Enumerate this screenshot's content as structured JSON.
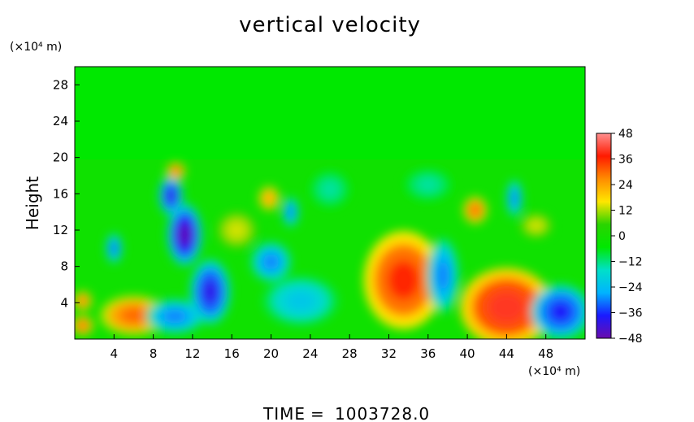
{
  "chart_data": {
    "type": "heatmap",
    "title": "vertical velocity",
    "xlabel": "",
    "ylabel": "Height",
    "x_unit": "(×10⁴ m)",
    "y_unit": "(×10⁴ m)",
    "xlim": [
      0,
      52
    ],
    "ylim": [
      0,
      30
    ],
    "x_ticks": [
      4,
      8,
      12,
      16,
      20,
      24,
      28,
      32,
      36,
      40,
      44,
      48
    ],
    "y_ticks": [
      4,
      8,
      12,
      16,
      20,
      24,
      28
    ],
    "colorbar": {
      "ticks": [
        48,
        36,
        24,
        12,
        0,
        -12,
        -24,
        -36,
        -48
      ],
      "range": [
        -48,
        48
      ],
      "colors": [
        "#6a0dad",
        "#1a1aff",
        "#00b4ff",
        "#00e0c8",
        "#00e800",
        "#2ad400",
        "#ffe600",
        "#ff8c00",
        "#ff1a00",
        "#ff9090"
      ]
    },
    "features": [
      {
        "x": 6,
        "y": 2.6,
        "value": 30,
        "rx": 2.5,
        "ry": 1.6
      },
      {
        "x": 0.8,
        "y": 4.2,
        "value": 28,
        "rx": 0.7,
        "ry": 0.8
      },
      {
        "x": 0.8,
        "y": 1.5,
        "value": 30,
        "rx": 0.8,
        "ry": 0.8
      },
      {
        "x": 10.2,
        "y": 2.5,
        "value": -30,
        "rx": 2.2,
        "ry": 1.4
      },
      {
        "x": 13.8,
        "y": 5.2,
        "value": -40,
        "rx": 1.5,
        "ry": 2.6
      },
      {
        "x": 11.2,
        "y": 11.5,
        "value": -46,
        "rx": 1.3,
        "ry": 2.5
      },
      {
        "x": 9.8,
        "y": 15.8,
        "value": -40,
        "rx": 0.9,
        "ry": 1.6
      },
      {
        "x": 4,
        "y": 10,
        "value": -32,
        "rx": 0.6,
        "ry": 1.2
      },
      {
        "x": 10.3,
        "y": 18.5,
        "value": 30,
        "rx": 0.7,
        "ry": 0.7
      },
      {
        "x": 20,
        "y": 8.5,
        "value": -30,
        "rx": 1.5,
        "ry": 1.6
      },
      {
        "x": 23,
        "y": 4.2,
        "value": -22,
        "rx": 2.8,
        "ry": 2.0
      },
      {
        "x": 22,
        "y": 14,
        "value": -30,
        "rx": 0.6,
        "ry": 1.2
      },
      {
        "x": 19.8,
        "y": 15.5,
        "value": 24,
        "rx": 0.8,
        "ry": 1.0
      },
      {
        "x": 33.5,
        "y": 6.5,
        "value": 36,
        "rx": 3.0,
        "ry": 4.0
      },
      {
        "x": 37.5,
        "y": 7.0,
        "value": -30,
        "rx": 1.2,
        "ry": 3.0
      },
      {
        "x": 44,
        "y": 3.5,
        "value": 40,
        "rx": 3.5,
        "ry": 3.2
      },
      {
        "x": 49.5,
        "y": 3.0,
        "value": -38,
        "rx": 2.2,
        "ry": 2.2
      },
      {
        "x": 40.8,
        "y": 14.2,
        "value": 30,
        "rx": 0.9,
        "ry": 1.1
      },
      {
        "x": 44.8,
        "y": 15.5,
        "value": -30,
        "rx": 0.6,
        "ry": 1.5
      },
      {
        "x": 47,
        "y": 12.5,
        "value": 14,
        "rx": 1.2,
        "ry": 1.0
      },
      {
        "x": 26,
        "y": 16.5,
        "value": -14,
        "rx": 1.5,
        "ry": 1.5
      },
      {
        "x": 36,
        "y": 17,
        "value": -14,
        "rx": 1.8,
        "ry": 1.3
      },
      {
        "x": 16.5,
        "y": 12,
        "value": 14,
        "rx": 1.5,
        "ry": 1.5
      }
    ]
  },
  "footer": {
    "time_label": "TIME",
    "equals": "=",
    "time_value": "1003728.0"
  }
}
